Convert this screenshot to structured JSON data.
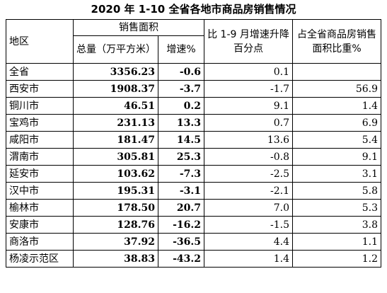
{
  "title": "2020 年 1-10 全省各地市商品房销售情况",
  "headers": {
    "region": "地区",
    "sales_area": "销售面积",
    "total": "总量（万平方米）",
    "growth": "增速%",
    "change": "比 1-9 月增速升降百分点",
    "share": "占全省商品房销售面积比重%"
  },
  "rows": [
    {
      "region": "全省",
      "total": "3356.23",
      "growth": "-0.6",
      "change": "0.1",
      "share": ""
    },
    {
      "region": "西安市",
      "total": "1908.37",
      "growth": "-3.7",
      "change": "-1.7",
      "share": "56.9"
    },
    {
      "region": "铜川市",
      "total": "46.51",
      "growth": "0.2",
      "change": "9.1",
      "share": "1.4"
    },
    {
      "region": "宝鸡市",
      "total": "231.13",
      "growth": "13.3",
      "change": "0.7",
      "share": "6.9"
    },
    {
      "region": "咸阳市",
      "total": "181.47",
      "growth": "14.5",
      "change": "13.6",
      "share": "5.4"
    },
    {
      "region": "渭南市",
      "total": "305.81",
      "growth": "25.3",
      "change": "-0.8",
      "share": "9.1"
    },
    {
      "region": "延安市",
      "total": "103.62",
      "growth": "-7.3",
      "change": "-2.5",
      "share": "3.1"
    },
    {
      "region": "汉中市",
      "total": "195.31",
      "growth": "-3.1",
      "change": "-2.1",
      "share": "5.8"
    },
    {
      "region": "榆林市",
      "total": "178.50",
      "growth": "20.7",
      "change": "7.0",
      "share": "5.3"
    },
    {
      "region": "安康市",
      "total": "128.76",
      "growth": "-16.2",
      "change": "-1.5",
      "share": "3.8"
    },
    {
      "region": "商洛市",
      "total": "37.92",
      "growth": "-36.5",
      "change": "4.4",
      "share": "1.1"
    },
    {
      "region": "杨凌示范区",
      "total": "38.83",
      "growth": "-43.2",
      "change": "1.4",
      "share": "1.2"
    }
  ]
}
